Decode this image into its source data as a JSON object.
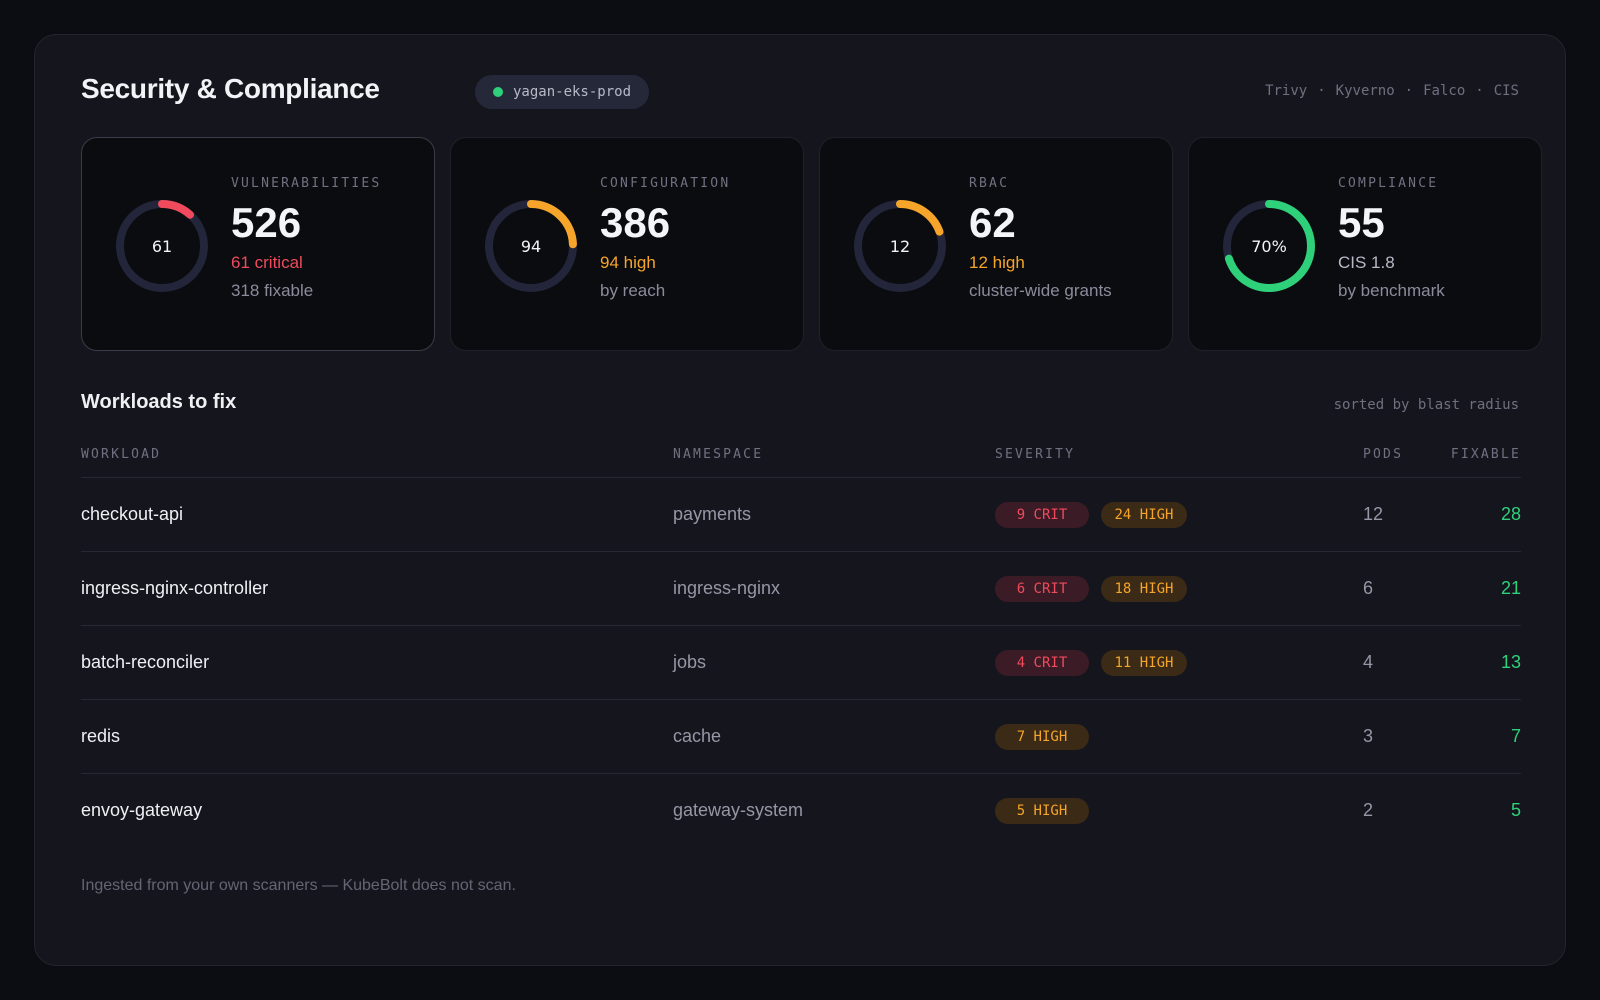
{
  "header": {
    "title": "Security & Compliance",
    "cluster": "yagan-eks-prod",
    "scanners": [
      "Trivy",
      "Kyverno",
      "Falco",
      "CIS"
    ]
  },
  "colors": {
    "critical": "#ef4b5d",
    "high": "#f6a52a",
    "success": "#2fd07a",
    "track": "#23253a"
  },
  "cards": [
    {
      "label": "VULNERABILITIES",
      "center": "61",
      "value": "526",
      "sub1": "61 critical",
      "sub1_color": "#ef4b5d",
      "sub2": "318 fixable",
      "ring_fraction": 0.116,
      "ring_color": "#ef4b5d"
    },
    {
      "label": "CONFIGURATION",
      "center": "94",
      "value": "386",
      "sub1": "94 high",
      "sub1_color": "#f6a52a",
      "sub2": "by reach",
      "ring_fraction": 0.243,
      "ring_color": "#f6a52a"
    },
    {
      "label": "RBAC",
      "center": "12",
      "value": "62",
      "sub1": "12 high",
      "sub1_color": "#f6a52a",
      "sub2": "cluster-wide grants",
      "ring_fraction": 0.194,
      "ring_color": "#f6a52a"
    },
    {
      "label": "COMPLIANCE",
      "center": "70%",
      "value": "55",
      "sub1": "CIS 1.8",
      "sub1_color": "#b7b9c8",
      "sub2": "by benchmark",
      "ring_fraction": 0.7,
      "ring_color": "#2fd07a"
    }
  ],
  "workloads": {
    "title": "Workloads to fix",
    "sort_note": "sorted by blast radius",
    "columns": {
      "workload": "WORKLOAD",
      "namespace": "NAMESPACE",
      "severity": "SEVERITY",
      "pods": "PODS",
      "fixable": "FIXABLE"
    },
    "rows": [
      {
        "workload": "checkout-api",
        "namespace": "payments",
        "crit": "9 CRIT",
        "high": "24 HIGH",
        "pods": "12",
        "fixable": "28"
      },
      {
        "workload": "ingress-nginx-controller",
        "namespace": "ingress-nginx",
        "crit": "6 CRIT",
        "high": "18 HIGH",
        "pods": "6",
        "fixable": "21"
      },
      {
        "workload": "batch-reconciler",
        "namespace": "jobs",
        "crit": "4 CRIT",
        "high": "11 HIGH",
        "pods": "4",
        "fixable": "13"
      },
      {
        "workload": "redis",
        "namespace": "cache",
        "crit": "",
        "high": "7 HIGH",
        "pods": "3",
        "fixable": "7"
      },
      {
        "workload": "envoy-gateway",
        "namespace": "gateway-system",
        "crit": "",
        "high": "5 HIGH",
        "pods": "2",
        "fixable": "5"
      }
    ]
  },
  "footer": "Ingested from your own scanners — KubeBolt does not scan."
}
